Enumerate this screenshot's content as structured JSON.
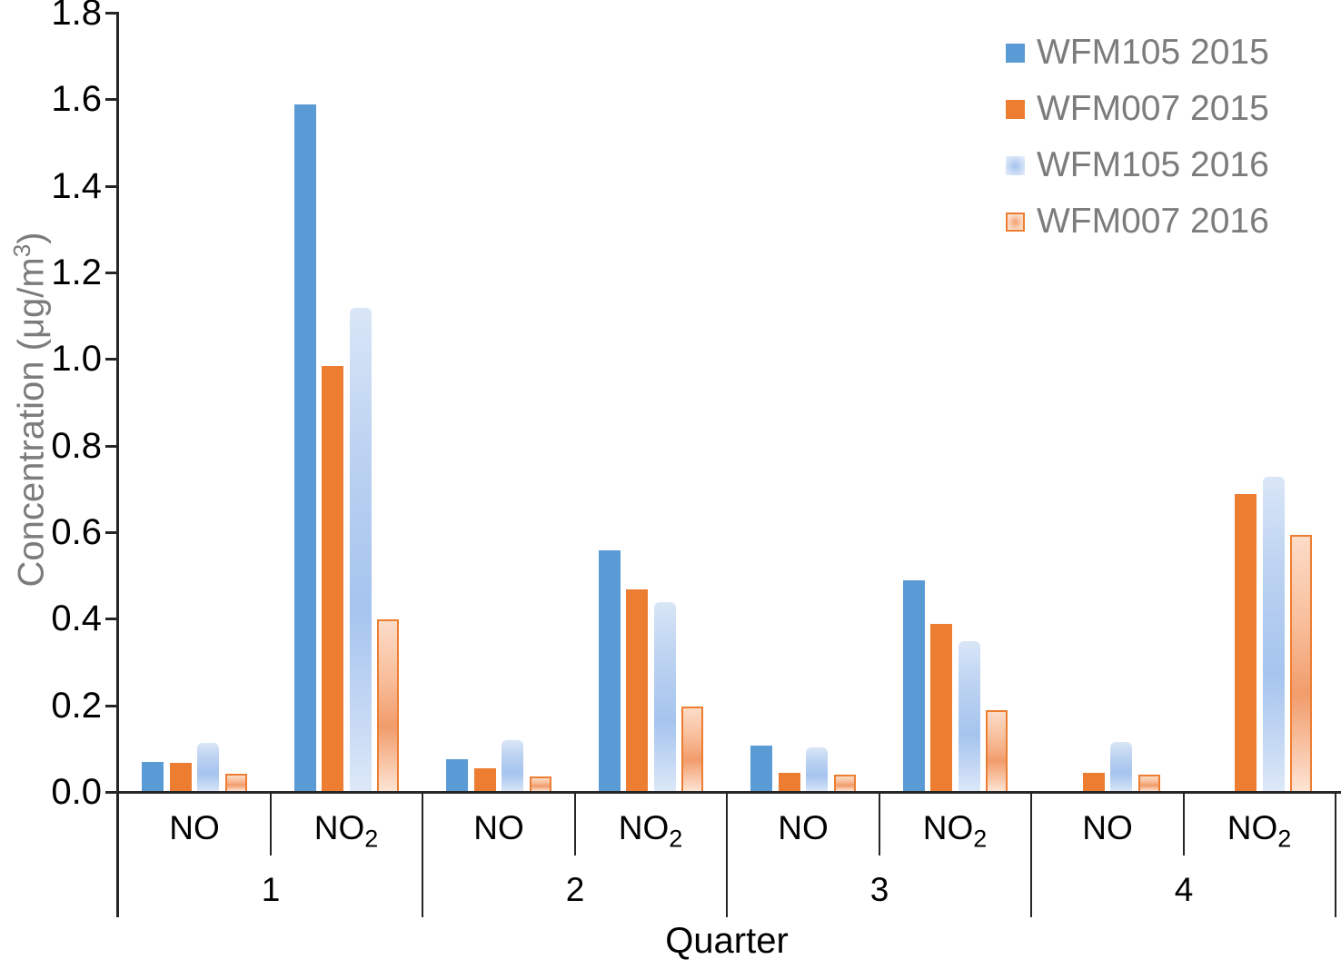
{
  "chart_data": {
    "type": "bar",
    "title": "",
    "xlabel": "Quarter",
    "ylabel": "Concentration (μg/m³)",
    "ylabel_parts": {
      "pre": "Concentration (μg/m",
      "sup": "3",
      "post": ")"
    },
    "ylim": [
      0,
      1.8
    ],
    "ytick_step": 0.2,
    "ytick_labels": [
      "0.0",
      "0.2",
      "0.4",
      "0.6",
      "0.8",
      "1.0",
      "1.2",
      "1.4",
      "1.6",
      "1.8"
    ],
    "grid": false,
    "legend_position": "top-right",
    "quarters": [
      "1",
      "2",
      "3",
      "4"
    ],
    "subgroups": [
      {
        "base": "NO",
        "sub": ""
      },
      {
        "base": "NO",
        "sub": "2"
      }
    ],
    "categories": [
      "Q1 NO",
      "Q1 NO2",
      "Q2 NO",
      "Q2 NO2",
      "Q3 NO",
      "Q3 NO2",
      "Q4 NO",
      "Q4 NO2"
    ],
    "series": [
      {
        "name": "WFM105 2015",
        "fill": "solid-blue",
        "color": "#5B9BD5",
        "values": [
          0.072,
          1.59,
          0.077,
          0.56,
          0.11,
          0.49,
          null,
          null
        ]
      },
      {
        "name": "WFM007 2015",
        "fill": "solid-orange",
        "color": "#ED7D31",
        "values": [
          0.069,
          0.985,
          0.057,
          0.47,
          0.046,
          0.39,
          0.046,
          0.69
        ]
      },
      {
        "name": "WFM105 2016",
        "fill": "gradient-blue",
        "color": "#A5C4EE",
        "values": [
          0.115,
          1.12,
          0.122,
          0.44,
          0.105,
          0.35,
          0.117,
          0.73
        ]
      },
      {
        "name": "WFM007 2016",
        "fill": "gradient-orange",
        "color": "#F19C6B",
        "values": [
          0.045,
          0.4,
          0.038,
          0.2,
          0.042,
          0.19,
          0.042,
          0.595
        ]
      }
    ],
    "colors": {
      "axis_line": "#262626",
      "tick_text": "#000000",
      "axis_title_text": "#7C7C7C",
      "legend_text": "#7C7C7C"
    }
  }
}
